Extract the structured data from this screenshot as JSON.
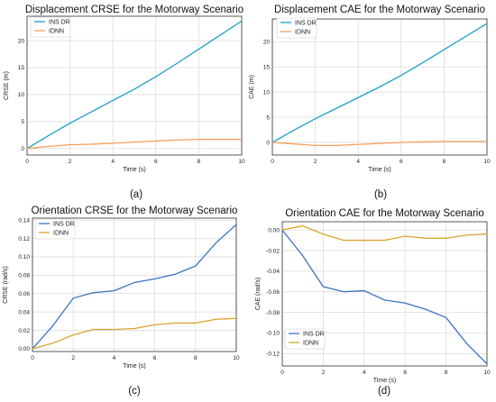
{
  "chart_data": [
    {
      "type": "line",
      "title": "Displacement CRSE for the Motorway Scenario",
      "caption": "(a)",
      "xlabel": "Time (s)",
      "ylabel": "CRSE (m)",
      "xlim": [
        0,
        10
      ],
      "ylim": [
        -1.2,
        24.5
      ],
      "xticks": [
        0,
        2,
        4,
        6,
        8,
        10
      ],
      "yticks": [
        0,
        5,
        10,
        15,
        20
      ],
      "ytick_labels": [
        "0",
        "5",
        "10",
        "15",
        "20"
      ],
      "legend_position": "top-left",
      "grid": true,
      "x": [
        0,
        1,
        2,
        3,
        4,
        5,
        6,
        7,
        8,
        9,
        10
      ],
      "series": [
        {
          "name": "INS DR",
          "color": "#1f9fc4",
          "values": [
            0,
            2.4,
            4.7,
            6.8,
            8.9,
            11.0,
            13.3,
            15.8,
            18.4,
            21.0,
            23.6
          ]
        },
        {
          "name": "IDNN",
          "color": "#f5a05a",
          "values": [
            0,
            0.4,
            0.7,
            0.8,
            1.0,
            1.2,
            1.4,
            1.6,
            1.7,
            1.7,
            1.7
          ]
        }
      ]
    },
    {
      "type": "line",
      "title": "Displacement CAE for the Motorway Scenario",
      "caption": "(b)",
      "xlabel": "Time (s)",
      "ylabel": "CAE (m)",
      "xlim": [
        0,
        10
      ],
      "ylim": [
        -2.5,
        24.5
      ],
      "xticks": [
        0,
        2,
        4,
        6,
        8,
        10
      ],
      "yticks": [
        0,
        5,
        10,
        15,
        20
      ],
      "ytick_labels": [
        "0",
        "5",
        "10",
        "15",
        "20"
      ],
      "legend_position": "top-left",
      "grid": true,
      "x": [
        0,
        1,
        2,
        3,
        4,
        5,
        6,
        7,
        8,
        9,
        10
      ],
      "series": [
        {
          "name": "INS DR",
          "color": "#1f9fc4",
          "values": [
            0,
            2.4,
            4.7,
            6.8,
            8.9,
            11.0,
            13.3,
            15.8,
            18.4,
            21.0,
            23.6
          ]
        },
        {
          "name": "IDNN",
          "color": "#f5a05a",
          "values": [
            0,
            -0.3,
            -0.6,
            -0.6,
            -0.4,
            -0.2,
            0.0,
            0.1,
            0.2,
            0.2,
            0.2
          ]
        }
      ]
    },
    {
      "type": "line",
      "title": "Orientation CRSE for the Motorway Scenario",
      "caption": "(c)",
      "xlabel": "Time (s)",
      "ylabel": "CRSE (rad/s)",
      "xlim": [
        0,
        10
      ],
      "ylim": [
        -0.003,
        0.142
      ],
      "xticks": [
        0,
        2,
        4,
        6,
        8,
        10
      ],
      "yticks": [
        0,
        0.02,
        0.04,
        0.06,
        0.08,
        0.1,
        0.12,
        0.14
      ],
      "ytick_labels": [
        "0.00",
        "0.02",
        "0.04",
        "0.06",
        "0.08",
        "0.10",
        "0.12",
        "0.14"
      ],
      "legend_position": "top-left",
      "grid": true,
      "x": [
        0,
        1,
        2,
        3,
        4,
        5,
        6,
        7,
        8,
        9,
        10
      ],
      "series": [
        {
          "name": "INS DR",
          "color": "#3b73c4",
          "values": [
            0,
            0.025,
            0.055,
            0.061,
            0.063,
            0.072,
            0.076,
            0.081,
            0.09,
            0.115,
            0.135
          ]
        },
        {
          "name": "IDNN",
          "color": "#d9a42c",
          "values": [
            0,
            0.006,
            0.015,
            0.021,
            0.021,
            0.022,
            0.026,
            0.028,
            0.028,
            0.032,
            0.033
          ]
        }
      ]
    },
    {
      "type": "line",
      "title": "Orientation CAE for the Motorway Scenario",
      "caption": "(d)",
      "xlabel": "Time (s)",
      "ylabel": "CAE (rad/s)",
      "xlim": [
        0,
        10
      ],
      "ylim": [
        -0.132,
        0.008
      ],
      "xticks": [
        0,
        2,
        4,
        6,
        8,
        10
      ],
      "yticks": [
        0,
        -0.02,
        -0.04,
        -0.06,
        -0.08,
        -0.1,
        -0.12
      ],
      "ytick_labels": [
        "0.00",
        "-0.02",
        "-0.04",
        "-0.06",
        "-0.08",
        "-0.10",
        "-0.12"
      ],
      "legend_position": "bottom-left",
      "grid": true,
      "x": [
        0,
        1,
        2,
        3,
        4,
        5,
        6,
        7,
        8,
        9,
        10
      ],
      "series": [
        {
          "name": "INS DR",
          "color": "#3b73c4",
          "values": [
            0,
            -0.025,
            -0.055,
            -0.06,
            -0.059,
            -0.068,
            -0.071,
            -0.077,
            -0.085,
            -0.11,
            -0.13
          ]
        },
        {
          "name": "IDNN",
          "color": "#d9a42c",
          "values": [
            0,
            0.004,
            -0.004,
            -0.01,
            -0.01,
            -0.01,
            -0.006,
            -0.008,
            -0.008,
            -0.005,
            -0.004
          ]
        }
      ]
    }
  ]
}
